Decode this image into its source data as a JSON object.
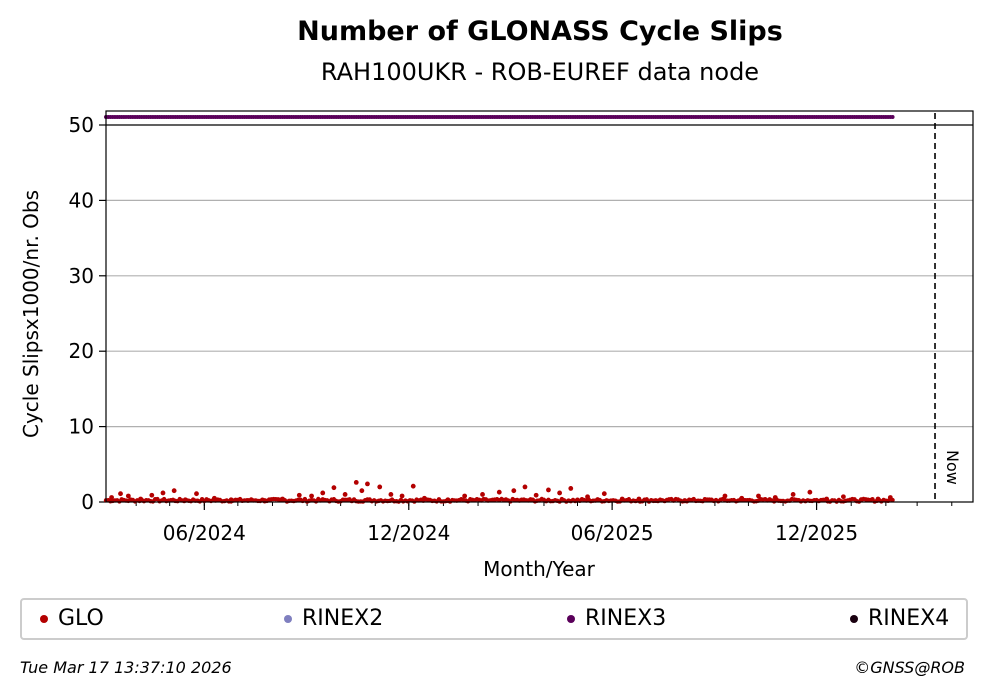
{
  "page": {
    "title": "Number of GLONASS Cycle Slips",
    "subtitle": "RAH100UKR - ROB-EUREF data node",
    "timestamp": "Tue Mar 17 13:37:10 2026",
    "copyright": "©GNSS@ROB"
  },
  "chart_data": {
    "type": "scatter",
    "xlabel": "Month/Year",
    "ylabel": "Cycle Slipsx1000/nr. Obs",
    "x_ticks": [
      "06/2024",
      "12/2024",
      "06/2025",
      "12/2025"
    ],
    "y_ticks": [
      0,
      10,
      20,
      30,
      40,
      50
    ],
    "ylim": [
      0,
      52
    ],
    "xlim": [
      "2024-03-05",
      "2026-04-20"
    ],
    "grid": "horizontal",
    "legend_placement": "bottom",
    "now_marker": {
      "date": "2026-03-17",
      "label": "Now"
    },
    "series": [
      {
        "name": "GLO",
        "color": "#b30000",
        "approx_range": [
          "2024-03-05",
          "2026-02-08"
        ],
        "points": [
          [
            "2024-03-10",
            0.6
          ],
          [
            "2024-03-18",
            1.1
          ],
          [
            "2024-03-25",
            0.8
          ],
          [
            "2024-04-05",
            0.4
          ],
          [
            "2024-04-15",
            0.9
          ],
          [
            "2024-04-25",
            1.2
          ],
          [
            "2024-05-05",
            1.5
          ],
          [
            "2024-05-15",
            0.3
          ],
          [
            "2024-05-25",
            1.1
          ],
          [
            "2024-06-10",
            0.5
          ],
          [
            "2024-06-25",
            0.3
          ],
          [
            "2024-07-10",
            0.2
          ],
          [
            "2024-07-25",
            0.2
          ],
          [
            "2024-08-10",
            0.4
          ],
          [
            "2024-08-25",
            0.9
          ],
          [
            "2024-09-05",
            0.8
          ],
          [
            "2024-09-15",
            1.2
          ],
          [
            "2024-09-25",
            1.9
          ],
          [
            "2024-10-05",
            1.0
          ],
          [
            "2024-10-15",
            2.6
          ],
          [
            "2024-10-20",
            1.5
          ],
          [
            "2024-10-25",
            2.4
          ],
          [
            "2024-11-05",
            2.0
          ],
          [
            "2024-11-15",
            1.0
          ],
          [
            "2024-11-25",
            0.8
          ],
          [
            "2024-12-05",
            2.1
          ],
          [
            "2024-12-15",
            0.5
          ],
          [
            "2025-01-05",
            0.3
          ],
          [
            "2025-01-20",
            0.8
          ],
          [
            "2025-02-05",
            1.0
          ],
          [
            "2025-02-20",
            1.3
          ],
          [
            "2025-03-05",
            1.5
          ],
          [
            "2025-03-15",
            2.0
          ],
          [
            "2025-03-25",
            0.9
          ],
          [
            "2025-04-05",
            1.6
          ],
          [
            "2025-04-15",
            1.2
          ],
          [
            "2025-04-25",
            1.8
          ],
          [
            "2025-05-10",
            0.7
          ],
          [
            "2025-05-25",
            1.1
          ],
          [
            "2025-06-10",
            0.4
          ],
          [
            "2025-06-25",
            0.4
          ],
          [
            "2025-07-10",
            0.2
          ],
          [
            "2025-08-05",
            0.2
          ],
          [
            "2025-08-25",
            0.3
          ],
          [
            "2025-09-10",
            0.8
          ],
          [
            "2025-09-25",
            0.5
          ],
          [
            "2025-10-10",
            0.8
          ],
          [
            "2025-10-25",
            0.6
          ],
          [
            "2025-11-10",
            1.0
          ],
          [
            "2025-11-25",
            1.3
          ],
          [
            "2025-12-10",
            0.4
          ],
          [
            "2025-12-25",
            0.7
          ],
          [
            "2026-01-10",
            0.3
          ],
          [
            "2026-01-25",
            0.4
          ],
          [
            "2026-02-05",
            0.6
          ]
        ]
      },
      {
        "name": "RINEX2",
        "color": "#7f7fbf",
        "points": []
      },
      {
        "name": "RINEX3",
        "color": "#5a005a",
        "constant_y": 51,
        "approx_range": [
          "2024-03-05",
          "2026-02-08"
        ],
        "points": []
      },
      {
        "name": "RINEX4",
        "color": "#1a0010",
        "points": []
      }
    ]
  }
}
